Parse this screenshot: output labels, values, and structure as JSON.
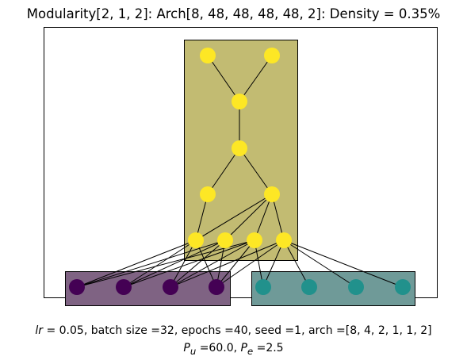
{
  "title": "Modularity[2, 1, 2]: Arch[8, 48, 48, 48, 48, 2]: Density = 0.35%",
  "caption": {
    "lr_symbol": "lr",
    "line1_rest": " 0.05, batch size =32, epochs =40, seed =1, arch =[8, 4, 2, 1, 1, 2]",
    "pu_base": "P",
    "pu_sub": "u",
    "pu_value": " =60.0, ",
    "pe_base": "P",
    "pe_sub": "e",
    "pe_value": " =2.5"
  },
  "colors": {
    "input_module_left_fill": "#7f6383",
    "input_module_right_fill": "#6f9a98",
    "hidden_module_fill": "#c2bb72",
    "input_left_node": "#440154",
    "input_right_node": "#21918c",
    "hidden_node": "#fde725",
    "edge": "#000000",
    "frame": "#000000"
  },
  "network": {
    "arch": [
      8,
      4,
      2,
      1,
      1,
      2
    ],
    "layers": [
      {
        "nodes": [
          0,
          0,
          0,
          0,
          1,
          1,
          1,
          1
        ]
      },
      {
        "nodes": [
          2,
          2,
          2,
          2
        ]
      },
      {
        "nodes": [
          2,
          2
        ]
      },
      {
        "nodes": [
          2
        ]
      },
      {
        "nodes": [
          2
        ]
      },
      {
        "nodes": [
          2,
          2
        ]
      }
    ],
    "edges": [
      [
        [
          0,
          0
        ],
        [
          1,
          0
        ]
      ],
      [
        [
          0,
          0
        ],
        [
          1,
          1
        ]
      ],
      [
        [
          0,
          0
        ],
        [
          1,
          2
        ]
      ],
      [
        [
          0,
          1
        ],
        [
          1,
          0
        ]
      ],
      [
        [
          0,
          1
        ],
        [
          1,
          1
        ]
      ],
      [
        [
          0,
          1
        ],
        [
          1,
          2
        ]
      ],
      [
        [
          0,
          2
        ],
        [
          1,
          0
        ]
      ],
      [
        [
          0,
          2
        ],
        [
          1,
          1
        ]
      ],
      [
        [
          0,
          2
        ],
        [
          1,
          2
        ]
      ],
      [
        [
          0,
          2
        ],
        [
          1,
          3
        ]
      ],
      [
        [
          0,
          3
        ],
        [
          1,
          0
        ]
      ],
      [
        [
          0,
          3
        ],
        [
          1,
          1
        ]
      ],
      [
        [
          0,
          3
        ],
        [
          1,
          2
        ]
      ],
      [
        [
          0,
          3
        ],
        [
          1,
          3
        ]
      ],
      [
        [
          0,
          4
        ],
        [
          1,
          2
        ]
      ],
      [
        [
          0,
          4
        ],
        [
          1,
          3
        ]
      ],
      [
        [
          0,
          5
        ],
        [
          1,
          3
        ]
      ],
      [
        [
          0,
          6
        ],
        [
          1,
          3
        ]
      ],
      [
        [
          0,
          7
        ],
        [
          1,
          3
        ]
      ],
      [
        [
          1,
          0
        ],
        [
          2,
          0
        ]
      ],
      [
        [
          1,
          0
        ],
        [
          2,
          1
        ]
      ],
      [
        [
          1,
          1
        ],
        [
          2,
          1
        ]
      ],
      [
        [
          1,
          2
        ],
        [
          2,
          1
        ]
      ],
      [
        [
          1,
          3
        ],
        [
          2,
          1
        ]
      ],
      [
        [
          2,
          0
        ],
        [
          3,
          0
        ]
      ],
      [
        [
          2,
          1
        ],
        [
          3,
          0
        ]
      ],
      [
        [
          3,
          0
        ],
        [
          4,
          0
        ]
      ],
      [
        [
          4,
          0
        ],
        [
          5,
          0
        ]
      ],
      [
        [
          4,
          0
        ],
        [
          5,
          1
        ]
      ]
    ]
  }
}
